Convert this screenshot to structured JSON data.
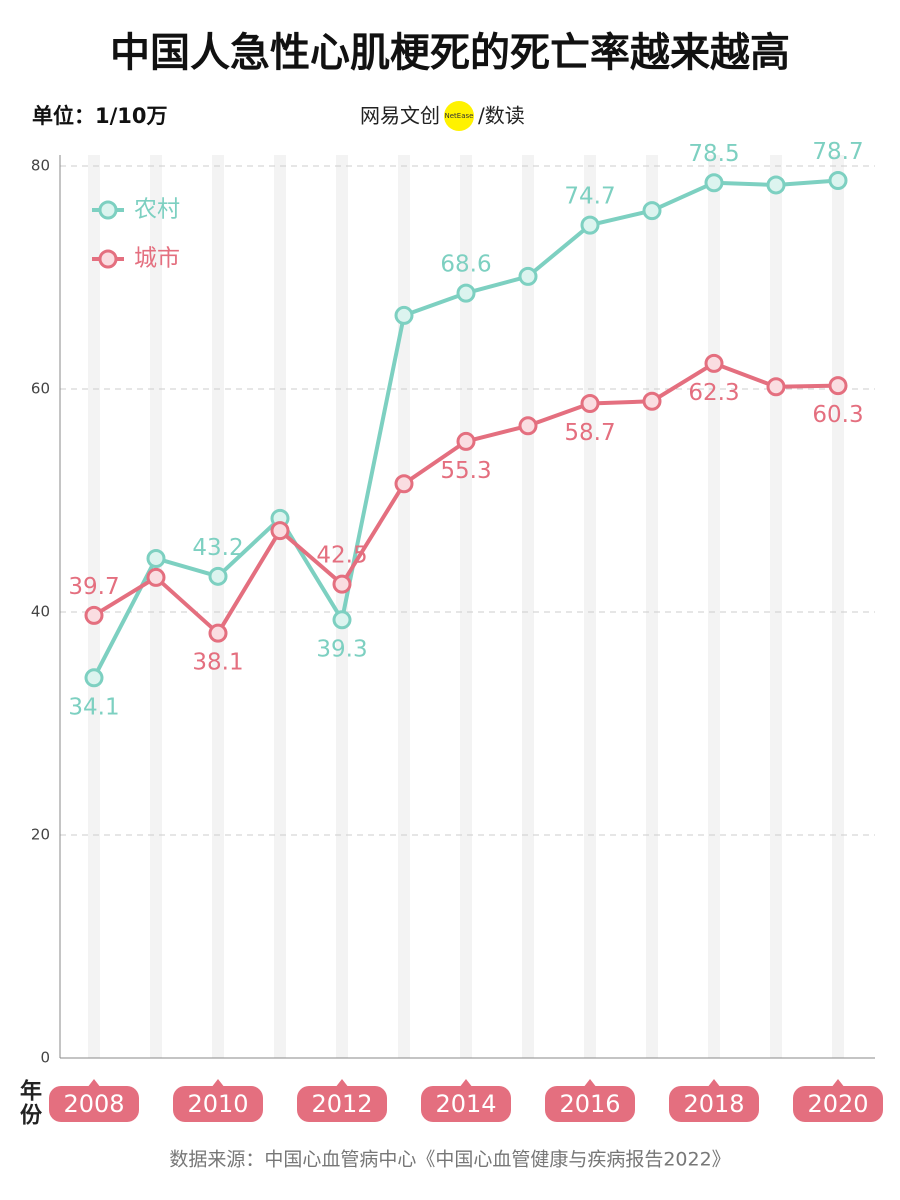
{
  "chart_data": {
    "type": "line",
    "title": "中国人急性心肌梗死的死亡率越来越高",
    "subtitle": "单位：1/10万",
    "logo": {
      "brand": "网易文创",
      "badge": "NetEase",
      "column": "/数读"
    },
    "x_label": "年份",
    "source": "数据来源：中国心血管病中心《中国心血管健康与疾病报告2022》",
    "categories": [
      "2008",
      null,
      "2010",
      null,
      "2012",
      null,
      "2014",
      null,
      "2016",
      null,
      "2018",
      null,
      "2020"
    ],
    "series": [
      {
        "name": "农村",
        "color": "#7dd0c1",
        "marker_fill": "#dcf4ef",
        "values": [
          34.1,
          44.8,
          43.2,
          48.4,
          39.3,
          66.6,
          68.6,
          70.1,
          74.7,
          76.0,
          78.5,
          78.3,
          78.7
        ],
        "value_labels": [
          "34.1",
          null,
          "43.2",
          null,
          "39.3",
          null,
          "68.6",
          null,
          "74.7",
          null,
          "78.5",
          null,
          "78.7"
        ]
      },
      {
        "name": "城市",
        "color": "#e46f7f",
        "marker_fill": "#fadde1",
        "values": [
          39.7,
          43.1,
          38.1,
          47.3,
          42.5,
          51.5,
          55.3,
          56.7,
          58.7,
          58.9,
          62.3,
          60.2,
          60.3
        ],
        "value_labels": [
          "39.7",
          null,
          "38.1",
          null,
          "42.5",
          null,
          "55.3",
          null,
          "58.7",
          null,
          "62.3",
          null,
          "60.3"
        ]
      }
    ],
    "ylim": [
      0,
      80
    ],
    "yticks": [
      0,
      20,
      40,
      60,
      80
    ],
    "grid": true,
    "legend": "upper left"
  }
}
